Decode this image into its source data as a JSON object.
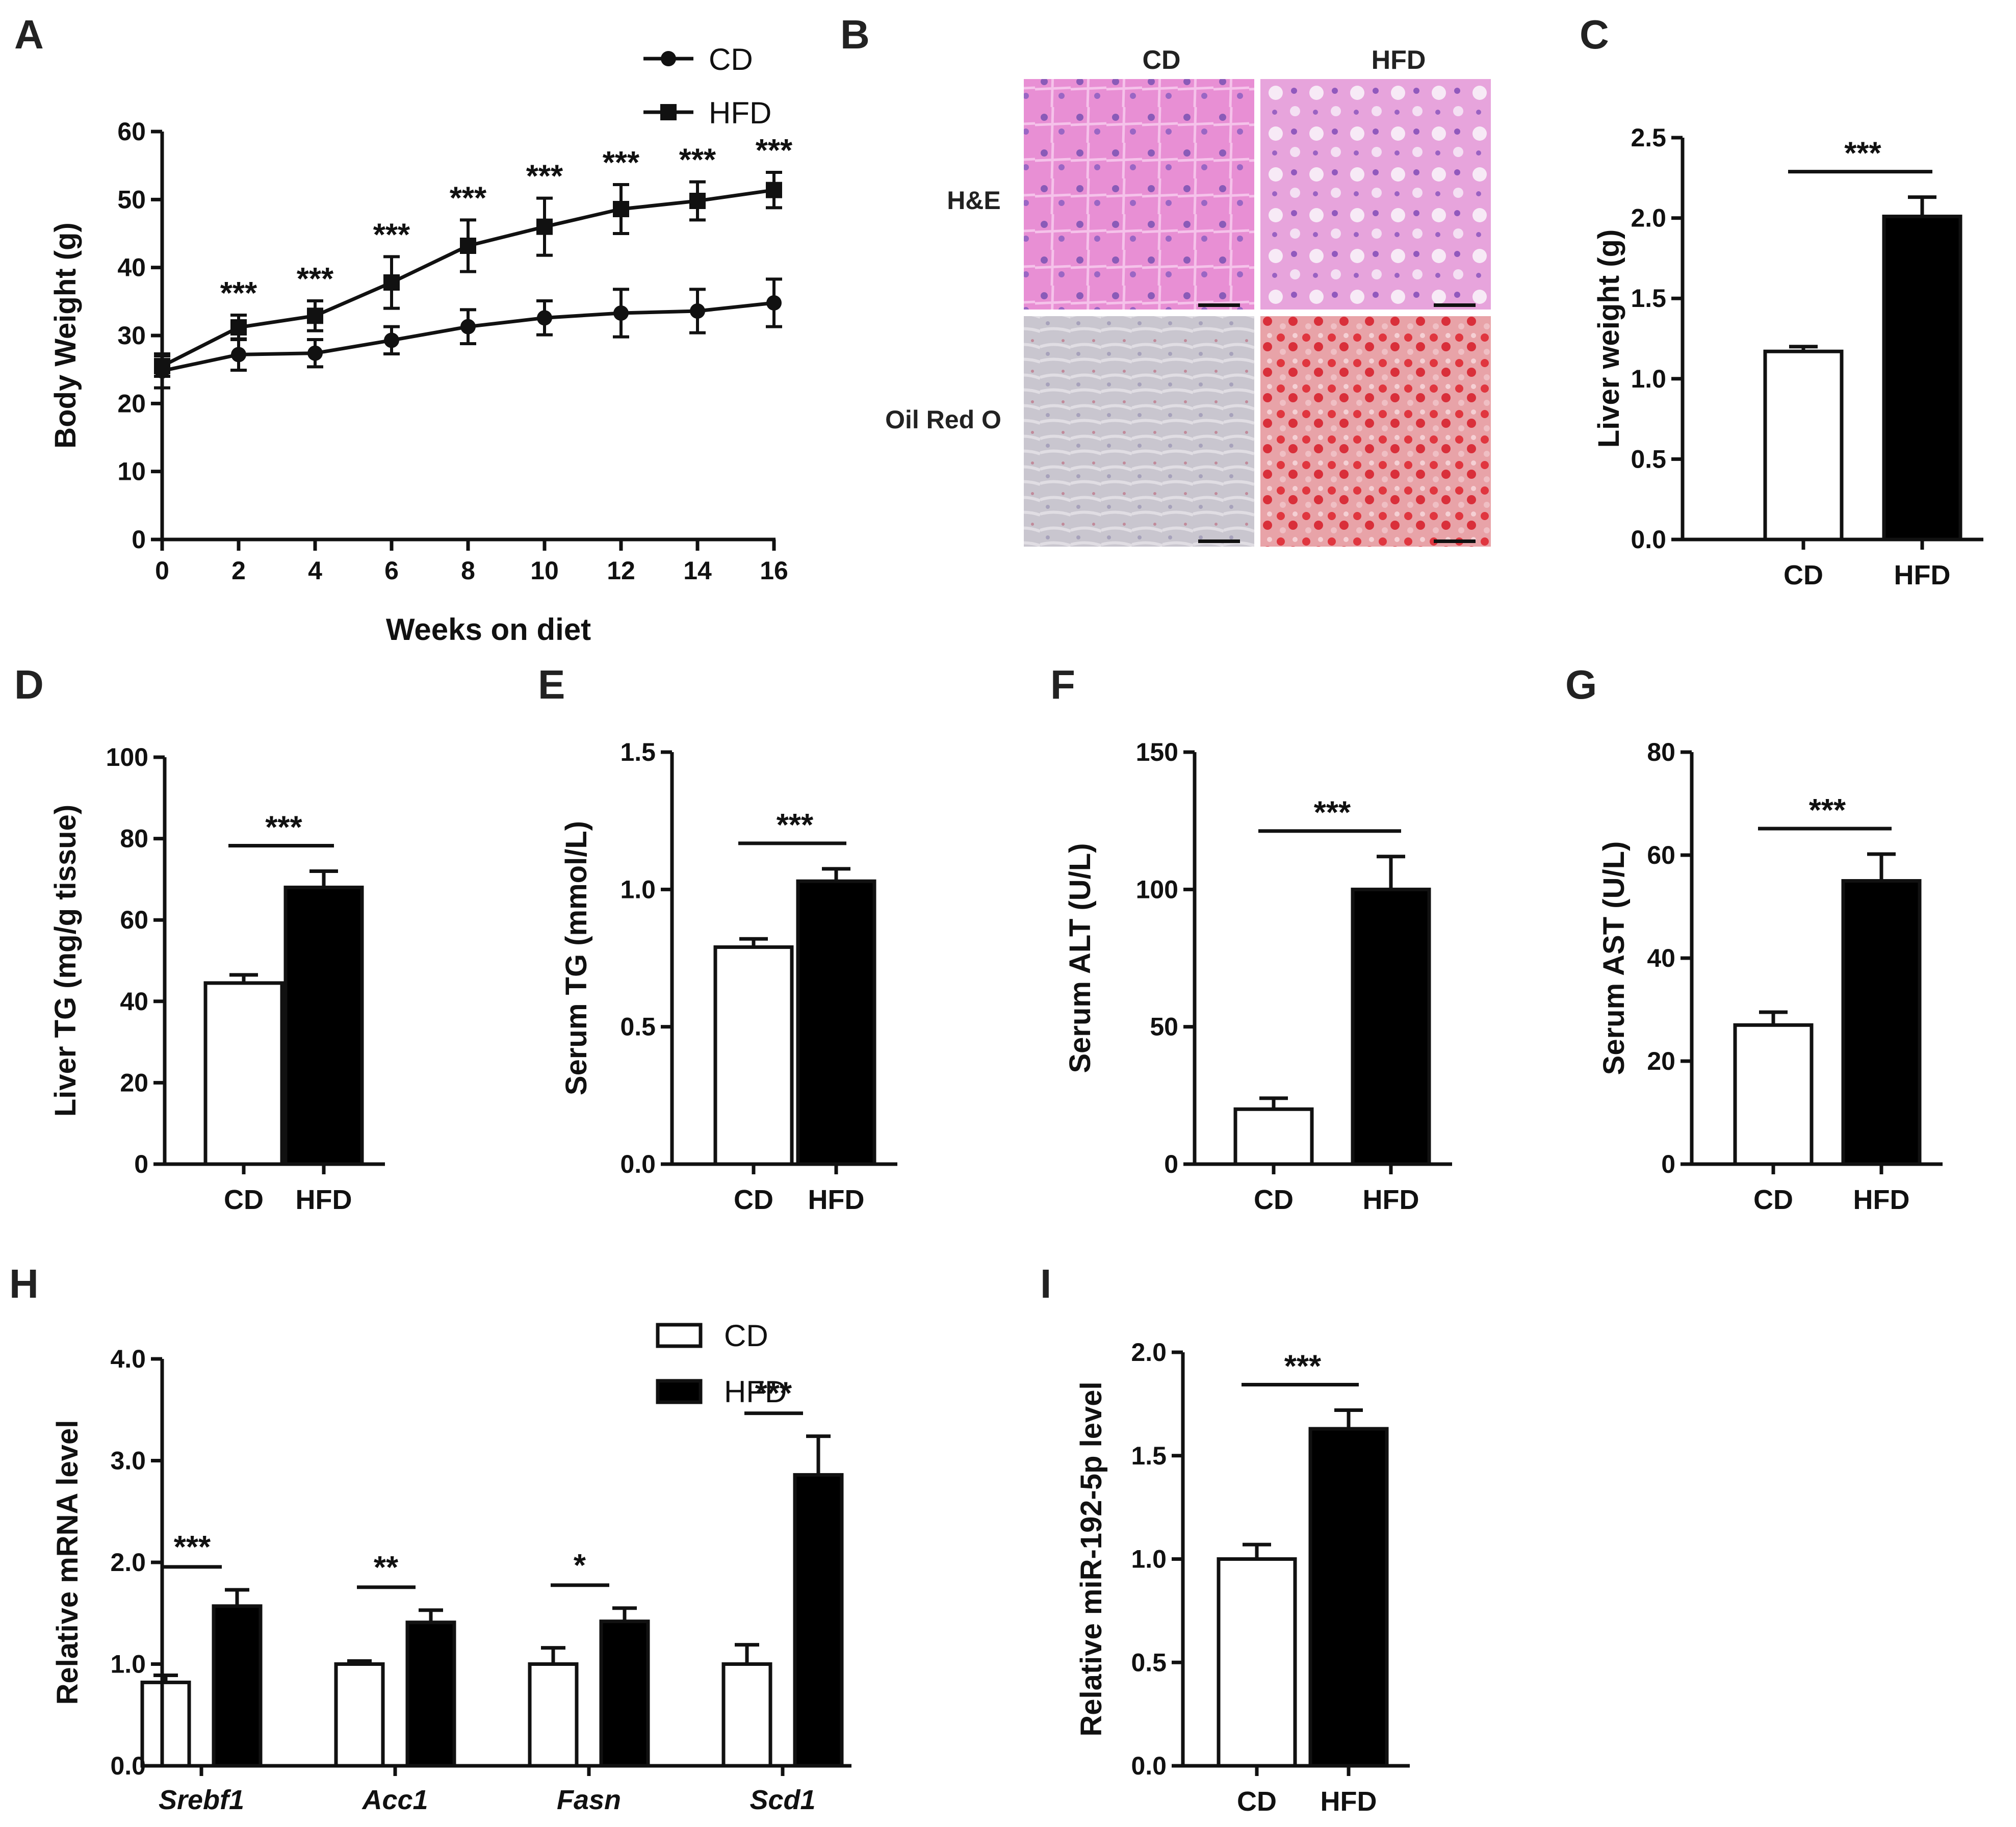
{
  "figure": {
    "panel_letters": [
      "A",
      "B",
      "C",
      "D",
      "E",
      "F",
      "G",
      "H",
      "I"
    ],
    "histology": {
      "columns": [
        "CD",
        "HFD"
      ],
      "rows": [
        "H&E",
        "Oil Red O"
      ]
    }
  },
  "chart_data": [
    {
      "id": "A",
      "type": "line",
      "title": "",
      "xlabel": "Weeks on diet",
      "ylabel": "Body Weight (g)",
      "xlim": [
        0,
        16
      ],
      "ylim": [
        0,
        60
      ],
      "xticks": [
        "0",
        "2",
        "4",
        "6",
        "8",
        "10",
        "12",
        "14",
        "16"
      ],
      "yticks": [
        "0",
        "10",
        "20",
        "30",
        "40",
        "50",
        "60"
      ],
      "legend_position": "top-center",
      "series": [
        {
          "name": "CD",
          "marker": "circle",
          "x": [
            0,
            2,
            4,
            6,
            8,
            10,
            12,
            14,
            16
          ],
          "y": [
            24.8,
            27.2,
            27.4,
            29.3,
            31.3,
            32.6,
            33.3,
            33.6,
            34.8
          ],
          "err": [
            2.5,
            2.3,
            2,
            2,
            2.5,
            2.5,
            3.5,
            3.2,
            3.5
          ]
        },
        {
          "name": "HFD",
          "marker": "square",
          "x": [
            0,
            2,
            4,
            6,
            8,
            10,
            12,
            14,
            16
          ],
          "y": [
            25.5,
            31.2,
            32.9,
            37.8,
            43.2,
            46.0,
            48.6,
            49.8,
            51.4
          ],
          "err": [
            1.5,
            1.8,
            2.2,
            3.8,
            3.8,
            4.2,
            3.6,
            2.8,
            2.6
          ]
        }
      ],
      "annotations": [
        {
          "x": 2,
          "text": "***"
        },
        {
          "x": 4,
          "text": "***"
        },
        {
          "x": 6,
          "text": "***"
        },
        {
          "x": 8,
          "text": "***"
        },
        {
          "x": 10,
          "text": "***"
        },
        {
          "x": 12,
          "text": "***"
        },
        {
          "x": 14,
          "text": "***"
        },
        {
          "x": 16,
          "text": "***"
        }
      ]
    },
    {
      "id": "C",
      "type": "bar",
      "ylabel": "Liver weight (g)",
      "categories": [
        "CD",
        "HFD"
      ],
      "values": [
        1.17,
        2.01
      ],
      "err": [
        0.03,
        0.12
      ],
      "ylim": [
        0,
        2.5
      ],
      "yticks": [
        "0.0",
        "0.5",
        "1.0",
        "1.5",
        "2.0",
        "2.5"
      ],
      "significance": "***"
    },
    {
      "id": "D",
      "type": "bar",
      "ylabel": "Liver TG (mg/g tissue)",
      "categories": [
        "CD",
        "HFD"
      ],
      "values": [
        44.5,
        68
      ],
      "err": [
        2,
        4
      ],
      "ylim": [
        0,
        100
      ],
      "yticks": [
        "0",
        "20",
        "40",
        "60",
        "80",
        "100"
      ],
      "significance": "***"
    },
    {
      "id": "E",
      "type": "bar",
      "ylabel": "Serum TG (mmol/L)",
      "categories": [
        "CD",
        "HFD"
      ],
      "values": [
        0.79,
        1.03
      ],
      "err": [
        0.03,
        0.045
      ],
      "ylim": [
        0,
        1.5
      ],
      "yticks": [
        "0.0",
        "0.5",
        "1.0",
        "1.5"
      ],
      "significance": "***"
    },
    {
      "id": "F",
      "type": "bar",
      "ylabel": "Serum ALT (U/L)",
      "categories": [
        "CD",
        "HFD"
      ],
      "values": [
        20,
        100
      ],
      "err": [
        4,
        12
      ],
      "ylim": [
        0,
        150
      ],
      "yticks": [
        "0",
        "50",
        "100",
        "150"
      ],
      "significance": "***"
    },
    {
      "id": "G",
      "type": "bar",
      "ylabel": "Serum AST (U/L)",
      "categories": [
        "CD",
        "HFD"
      ],
      "values": [
        27,
        55
      ],
      "err": [
        2.5,
        5.2
      ],
      "ylim": [
        0,
        80
      ],
      "yticks": [
        "0",
        "20",
        "40",
        "60",
        "80"
      ],
      "significance": "***"
    },
    {
      "id": "H",
      "type": "bar",
      "ylabel": "Relative mRNA level",
      "categories": [
        "Srebf1",
        "Acc1",
        "Fasn",
        "Scd1"
      ],
      "series": [
        {
          "name": "CD",
          "values": [
            0.82,
            1.0,
            1.0,
            1.0
          ],
          "err": [
            0.07,
            0.03,
            0.16,
            0.19
          ]
        },
        {
          "name": "HFD",
          "values": [
            1.57,
            1.41,
            1.42,
            2.86
          ],
          "err": [
            0.16,
            0.12,
            0.13,
            0.38
          ]
        }
      ],
      "ylim": [
        0,
        4.0
      ],
      "yticks": [
        "0.0",
        "1.0",
        "2.0",
        "3.0",
        "4.0"
      ],
      "significance": [
        "***",
        "**",
        "*",
        "***"
      ],
      "legend_position": "top-center"
    },
    {
      "id": "I",
      "type": "bar",
      "ylabel": "Relative miR-192-5p level",
      "categories": [
        "CD",
        "HFD"
      ],
      "values": [
        1.0,
        1.63
      ],
      "err": [
        0.07,
        0.09
      ],
      "ylim": [
        0,
        2.0
      ],
      "yticks": [
        "0.0",
        "0.5",
        "1.0",
        "1.5",
        "2.0"
      ],
      "significance": "***"
    }
  ]
}
